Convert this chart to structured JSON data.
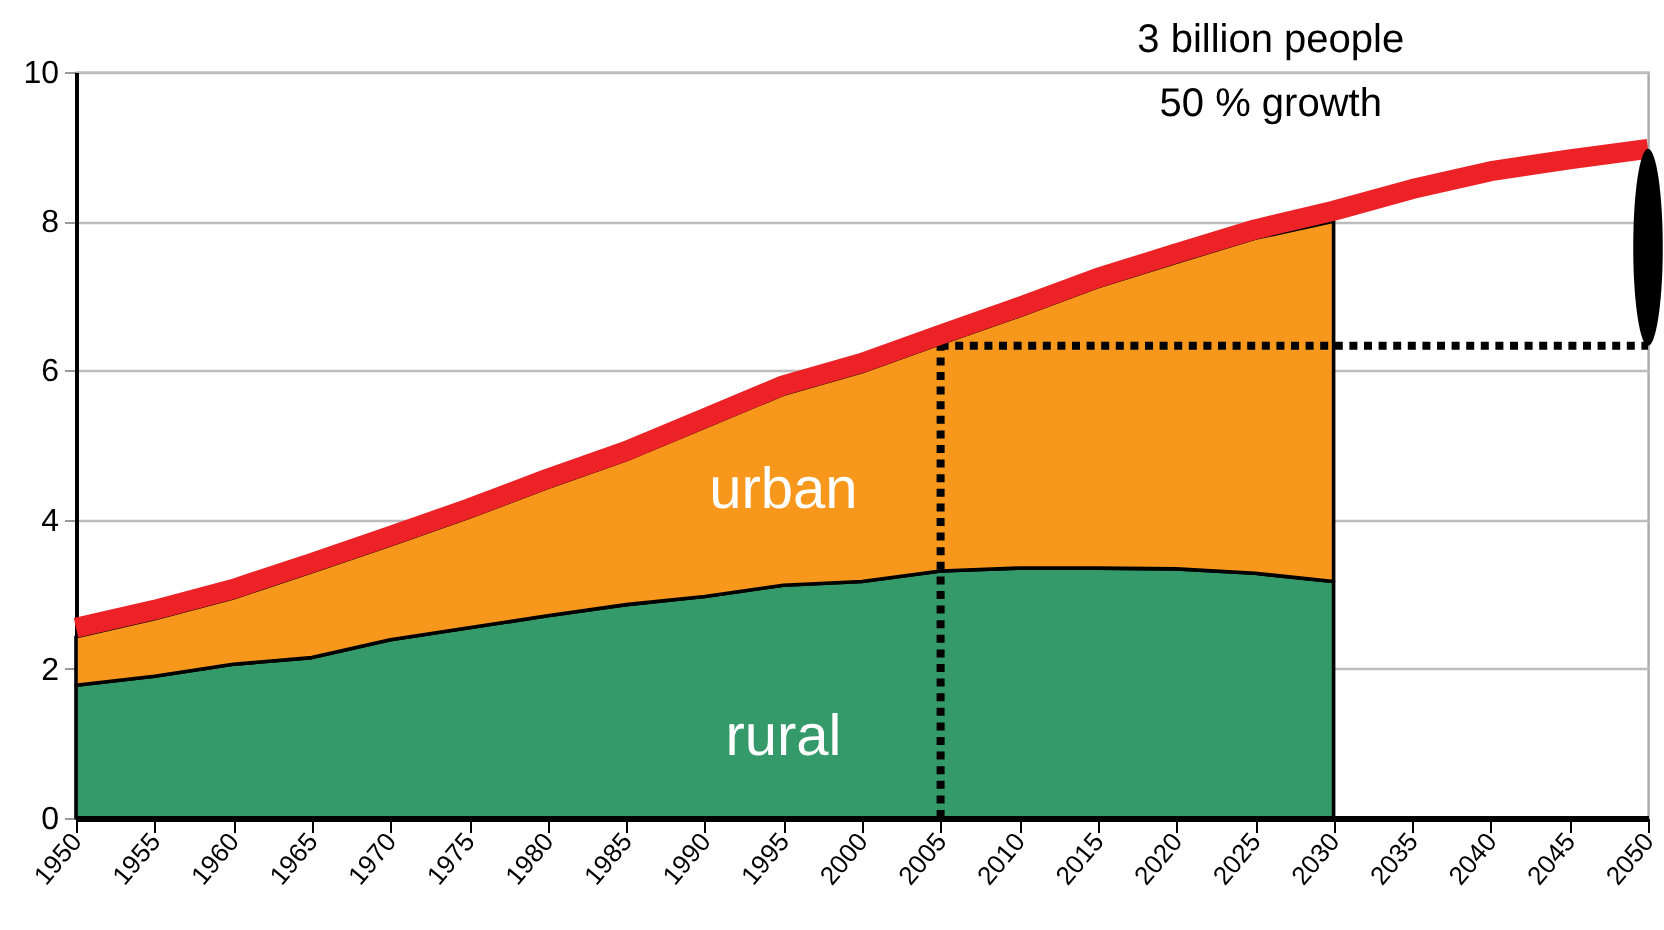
{
  "chart_data": {
    "type": "area",
    "stacked": true,
    "x": [
      1950,
      1955,
      1960,
      1965,
      1970,
      1975,
      1980,
      1985,
      1990,
      1995,
      2000,
      2005,
      2010,
      2015,
      2020,
      2025,
      2030
    ],
    "series": [
      {
        "name": "rural",
        "color": "#349a6a",
        "values": [
          1.78,
          1.9,
          2.06,
          2.15,
          2.39,
          2.55,
          2.71,
          2.86,
          2.97,
          3.12,
          3.17,
          3.31,
          3.35,
          3.35,
          3.34,
          3.28,
          3.17
        ]
      },
      {
        "name": "urban",
        "color": "#f7981d",
        "values": [
          0.65,
          0.77,
          0.89,
          1.15,
          1.27,
          1.48,
          1.72,
          1.94,
          2.27,
          2.56,
          2.81,
          3.05,
          3.38,
          3.77,
          4.11,
          4.49,
          4.83
        ]
      },
      {
        "type": "line",
        "color": "#ec2227",
        "x": [
          1950,
          1955,
          1960,
          1965,
          1970,
          1975,
          1980,
          1985,
          1990,
          1995,
          2000,
          2005,
          2010,
          2015,
          2020,
          2025,
          2030,
          2035,
          2040,
          2045,
          2050
        ],
        "values": [
          2.55,
          2.79,
          3.07,
          3.42,
          3.78,
          4.15,
          4.55,
          4.92,
          5.36,
          5.8,
          6.1,
          6.48,
          6.85,
          7.24,
          7.57,
          7.89,
          8.14,
          8.43,
          8.67,
          8.83,
          8.97
        ]
      }
    ],
    "xlim": [
      1950,
      2050
    ],
    "ylim": [
      0,
      10
    ],
    "xticks": [
      1950,
      1955,
      1960,
      1965,
      1970,
      1975,
      1980,
      1985,
      1990,
      1995,
      2000,
      2005,
      2010,
      2015,
      2020,
      2025,
      2030,
      2035,
      2040,
      2045,
      2050
    ],
    "yticks": [
      0,
      2,
      4,
      6,
      8,
      10
    ],
    "grid": "y",
    "ref_lines": [
      {
        "axis": "x",
        "value": 2005,
        "color": "#000000",
        "line_style": "dotted"
      },
      {
        "axis": "y",
        "value": 6.33,
        "color": "#000000",
        "line_style": "dotted"
      }
    ],
    "annotations": [
      "3 billion people\n50 % growth"
    ]
  }
}
